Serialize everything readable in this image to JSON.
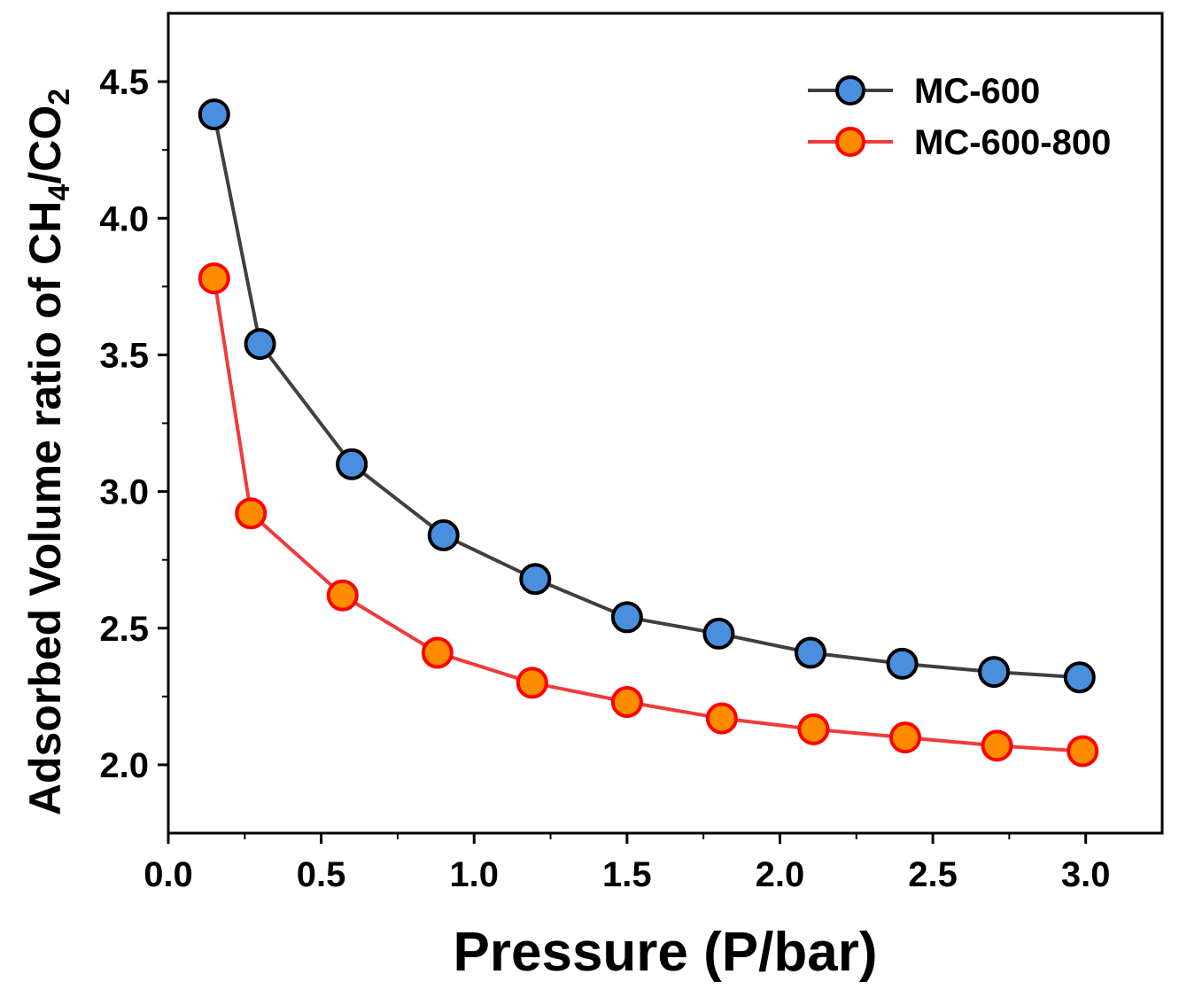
{
  "chart_data": {
    "type": "line",
    "xlabel": "Pressure (P/bar)",
    "ylabel_parts": {
      "main": "Adsorbed Volume ratio of  CH",
      "sub1": "4",
      "mid": "/CO",
      "sub2": "2"
    },
    "xlim": [
      0.0,
      3.25
    ],
    "ylim": [
      1.75,
      4.75
    ],
    "xticks": [
      0.0,
      0.5,
      1.0,
      1.5,
      2.0,
      2.5,
      3.0
    ],
    "xtick_labels": [
      "0.0",
      "0.5",
      "1.0",
      "1.5",
      "2.0",
      "2.5",
      "3.0"
    ],
    "yticks": [
      2.0,
      2.5,
      3.0,
      3.5,
      4.0,
      4.5
    ],
    "ytick_labels": [
      "2.0",
      "2.5",
      "3.0",
      "3.5",
      "4.0",
      "4.5"
    ],
    "legend_position": "top-right",
    "series": [
      {
        "name": "MC-600",
        "line_color": "#404040",
        "marker_fill": "#4a8fde",
        "marker_edge": "#000000",
        "x": [
          0.15,
          0.3,
          0.6,
          0.9,
          1.2,
          1.5,
          1.8,
          2.1,
          2.4,
          2.7,
          2.98
        ],
        "y": [
          4.38,
          3.54,
          3.1,
          2.84,
          2.68,
          2.54,
          2.48,
          2.41,
          2.37,
          2.34,
          2.32
        ]
      },
      {
        "name": "MC-600-800",
        "line_color": "#ef3b3b",
        "marker_fill": "#ff8c00",
        "marker_edge": "#ff0000",
        "x": [
          0.15,
          0.27,
          0.57,
          0.88,
          1.19,
          1.5,
          1.81,
          2.11,
          2.41,
          2.71,
          2.99
        ],
        "y": [
          3.78,
          2.92,
          2.62,
          2.41,
          2.3,
          2.23,
          2.17,
          2.13,
          2.1,
          2.07,
          2.05
        ]
      }
    ]
  }
}
